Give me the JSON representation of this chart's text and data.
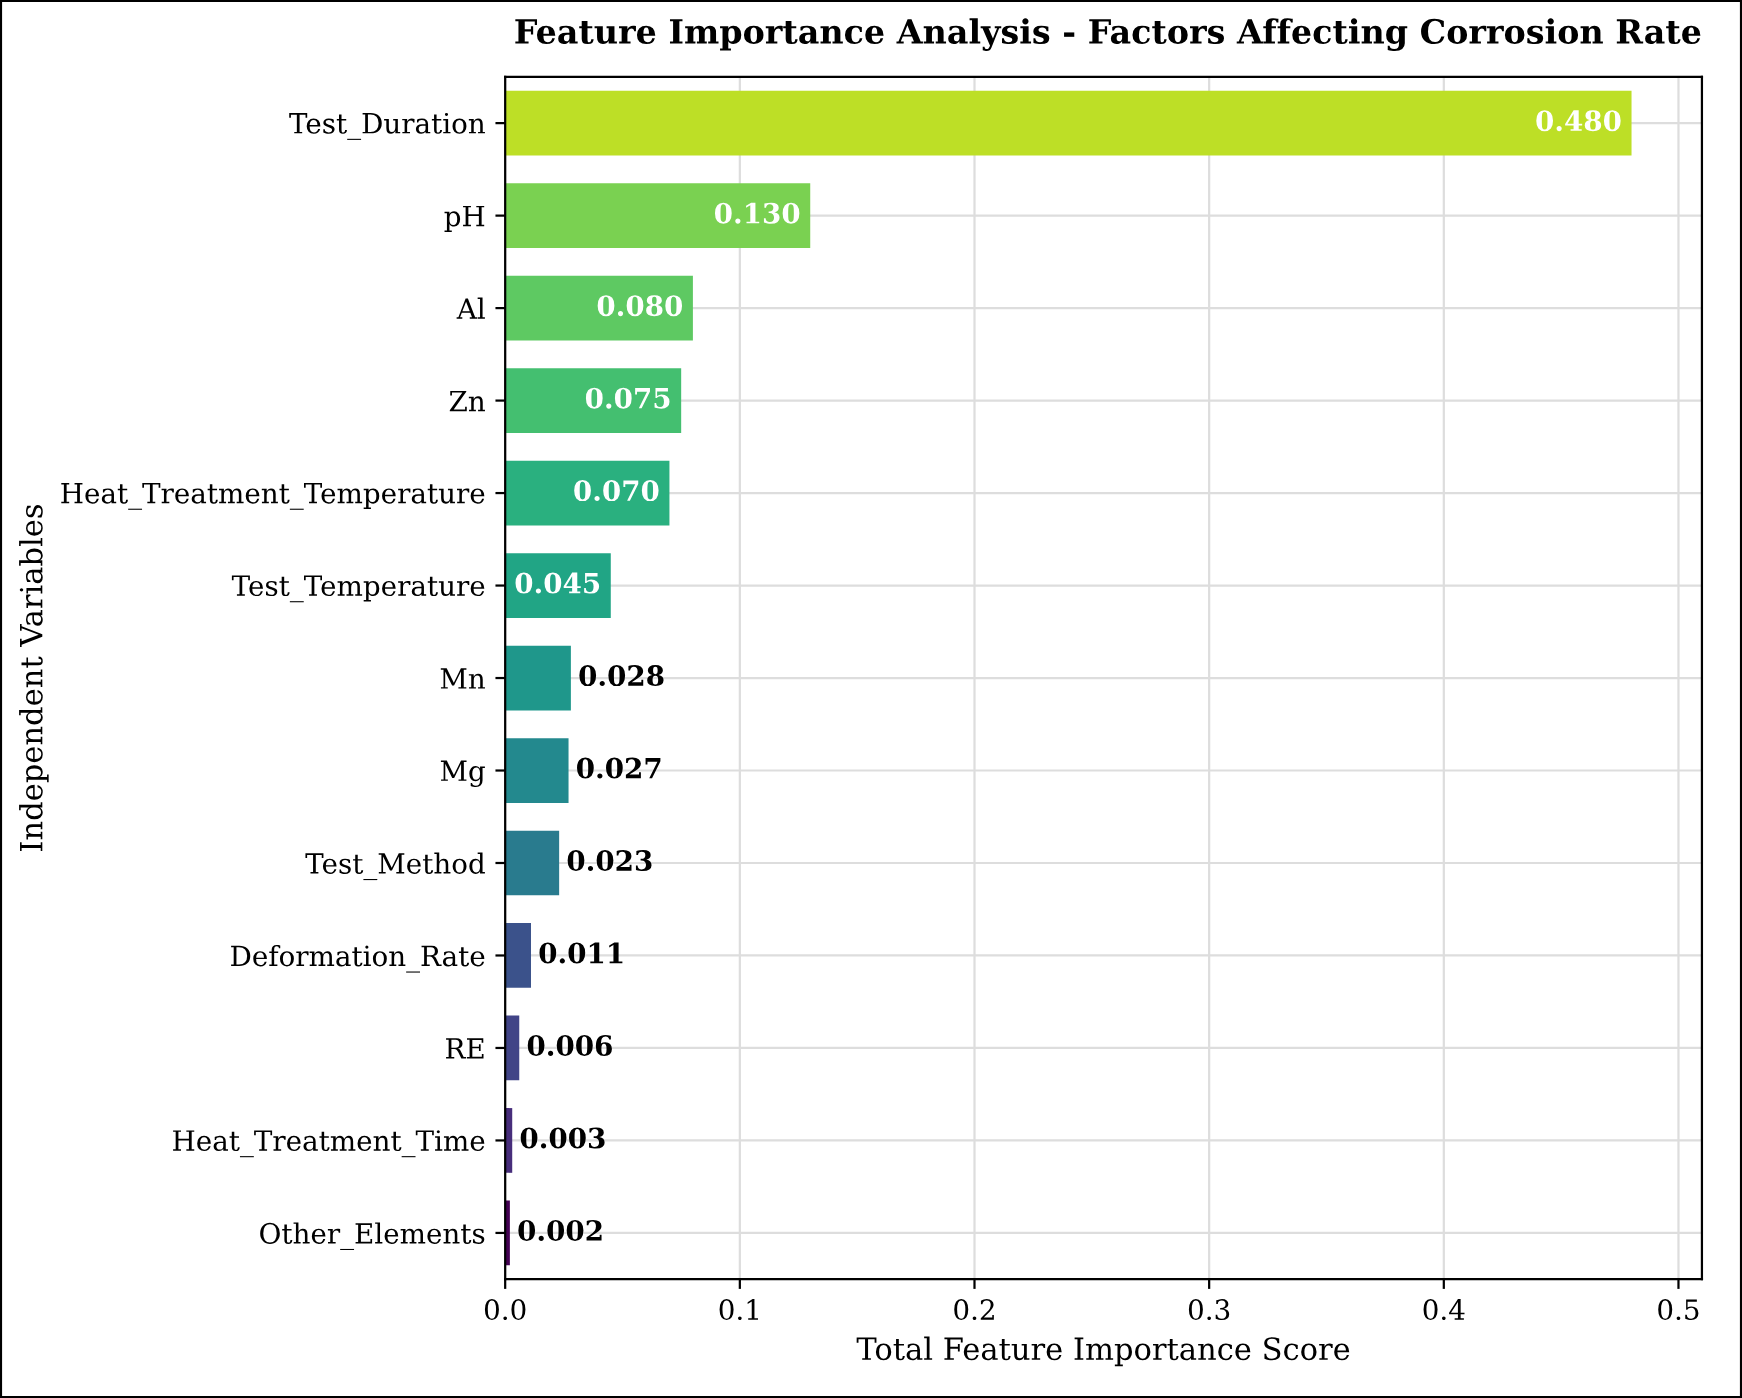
{
  "chart_data": {
    "type": "bar",
    "orientation": "horizontal",
    "title": "Feature Importance Analysis - Factors Affecting Corrosion Rate",
    "xlabel": "Total Feature Importance Score",
    "ylabel": "Independent Variables",
    "categories": [
      "Test_Duration",
      "pH",
      "Al",
      "Zn",
      "Heat_Treatment_Temperature",
      "Test_Temperature",
      "Mn",
      "Mg",
      "Test_Method",
      "Deformation_Rate",
      "RE",
      "Heat_Treatment_Time",
      "Other_Elements"
    ],
    "values": [
      0.48,
      0.13,
      0.08,
      0.075,
      0.07,
      0.045,
      0.028,
      0.027,
      0.023,
      0.011,
      0.006,
      0.003,
      0.002
    ],
    "value_labels": [
      "0.480",
      "0.130",
      "0.080",
      "0.075",
      "0.070",
      "0.045",
      "0.028",
      "0.027",
      "0.023",
      "0.011",
      "0.006",
      "0.003",
      "0.002"
    ],
    "colors": [
      "#bddf26",
      "#7ad151",
      "#5ec962",
      "#44bf70",
      "#2ab07f",
      "#21a585",
      "#1f978b",
      "#23898e",
      "#297b8e",
      "#3b528b",
      "#414487",
      "#472d7b",
      "#440154"
    ],
    "xlim": [
      0,
      0.51
    ],
    "xticks": [
      {
        "value": 0,
        "label": "0.0"
      },
      0.1,
      0.2,
      0.3,
      0.4,
      0.5
    ],
    "grid": true
  }
}
